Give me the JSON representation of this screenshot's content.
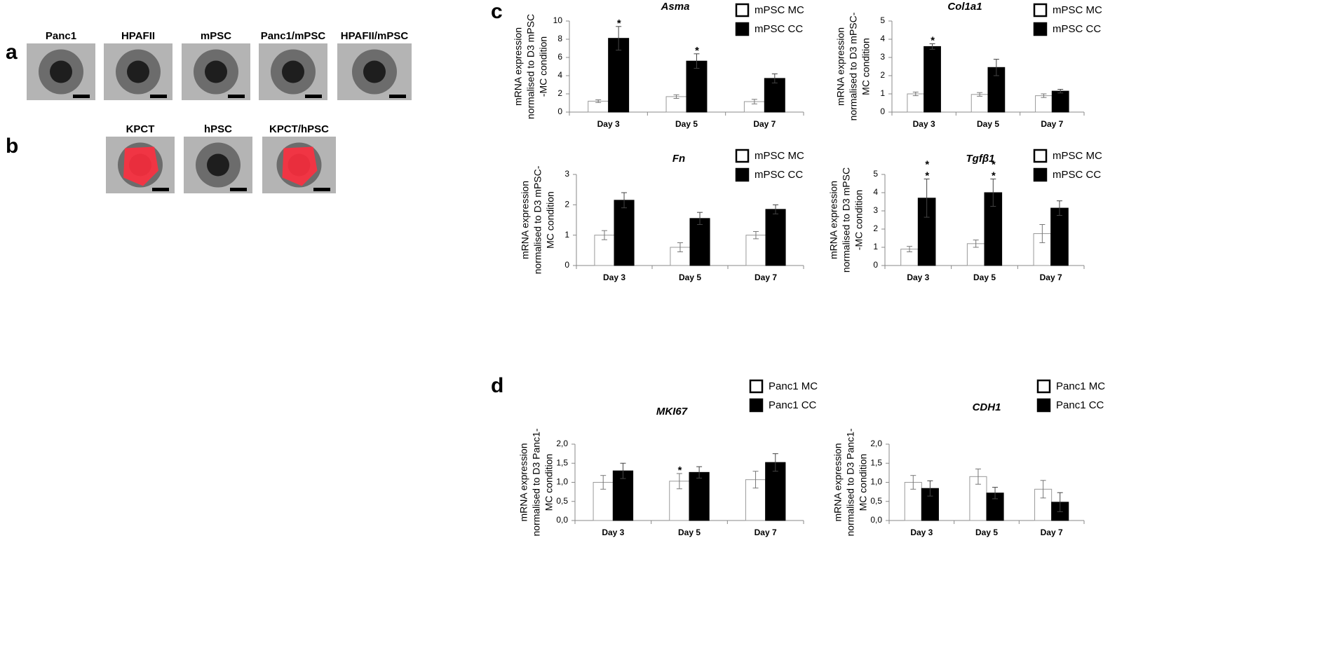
{
  "panels": [
    {
      "label": "a",
      "images": [
        "Panc1",
        "HPAFII",
        "mPSC",
        "Panc1/mPSC",
        "HPAFII/mPSC"
      ]
    },
    {
      "label": "b",
      "images": [
        "KPCT",
        "hPSC",
        "KPCT/hPSC"
      ]
    },
    {
      "label": "c"
    },
    {
      "label": "d"
    }
  ],
  "chart_data": [
    {
      "type": "bar",
      "title": "Asma",
      "ylabel": [
        "mRNA expression",
        "normalised to D3 mPSC",
        "-MC condition"
      ],
      "categories": [
        "Day 3",
        "Day 5",
        "Day 7"
      ],
      "series": [
        {
          "name": "mPSC MC",
          "color": "#ffffff",
          "values": [
            1.2,
            1.7,
            1.15
          ],
          "errors": [
            0.15,
            0.2,
            0.25
          ]
        },
        {
          "name": "mPSC CC",
          "color": "#000000",
          "values": [
            8.1,
            5.6,
            3.7
          ],
          "errors": [
            1.3,
            0.8,
            0.5
          ]
        }
      ],
      "ylim": [
        0,
        10
      ],
      "yticks": [
        0,
        2,
        4,
        6,
        8,
        10
      ],
      "annotations": [
        {
          "text": "*",
          "x": "Day 3",
          "series": "mPSC CC"
        },
        {
          "text": "*",
          "x": "Day 5",
          "series": "mPSC CC"
        }
      ]
    },
    {
      "type": "bar",
      "title": "Col1a1",
      "ylabel": [
        "mRNA expression",
        "normalised to D3 mPSC-",
        "MC condition"
      ],
      "categories": [
        "Day 3",
        "Day 5",
        "Day 7"
      ],
      "series": [
        {
          "name": "mPSC MC",
          "color": "#ffffff",
          "values": [
            1.0,
            0.97,
            0.9
          ],
          "errors": [
            0.1,
            0.1,
            0.1
          ]
        },
        {
          "name": "mPSC CC",
          "color": "#000000",
          "values": [
            3.6,
            2.45,
            1.15
          ],
          "errors": [
            0.15,
            0.45,
            0.1
          ]
        }
      ],
      "ylim": [
        0,
        5
      ],
      "yticks": [
        0,
        1,
        2,
        3,
        4,
        5
      ],
      "annotations": [
        {
          "text": "*",
          "x": "Day 3",
          "series": "mPSC CC"
        }
      ]
    },
    {
      "type": "bar",
      "title": "Fn",
      "ylabel": [
        "mRNA expression",
        "normalised to D3 mPSC-",
        "MC condition"
      ],
      "categories": [
        "Day 3",
        "Day 5",
        "Day 7"
      ],
      "series": [
        {
          "name": "mPSC MC",
          "color": "#ffffff",
          "values": [
            1.0,
            0.6,
            1.0
          ],
          "errors": [
            0.15,
            0.15,
            0.12
          ]
        },
        {
          "name": "mPSC CC",
          "color": "#000000",
          "values": [
            2.15,
            1.55,
            1.85
          ],
          "errors": [
            0.25,
            0.2,
            0.15
          ]
        }
      ],
      "ylim": [
        0,
        3
      ],
      "yticks": [
        0,
        1,
        2,
        3
      ]
    },
    {
      "type": "bar",
      "title": "Tgfβ1",
      "ylabel": [
        "mRNA expression",
        "normalised to D3 mPSC",
        "-MC condition"
      ],
      "categories": [
        "Day 3",
        "Day 5",
        "Day 7"
      ],
      "series": [
        {
          "name": "mPSC MC",
          "color": "#ffffff",
          "values": [
            0.9,
            1.2,
            1.75
          ],
          "errors": [
            0.15,
            0.2,
            0.5
          ]
        },
        {
          "name": "mPSC CC",
          "color": "#000000",
          "values": [
            3.7,
            4.0,
            3.15
          ],
          "errors": [
            1.05,
            0.75,
            0.4
          ]
        }
      ],
      "ylim": [
        0,
        5
      ],
      "yticks": [
        0,
        1,
        2,
        3,
        4,
        5
      ],
      "annotations": [
        {
          "text": "*",
          "x": "Day 3",
          "series": "mPSC CC"
        },
        {
          "text": "*",
          "x": "Day 3",
          "series": "mPSC CC"
        },
        {
          "text": "*",
          "x": "Day 5",
          "series": "mPSC CC"
        },
        {
          "text": "*",
          "x": "Day 5",
          "series": "mPSC CC"
        }
      ]
    },
    {
      "type": "bar",
      "title": "MKI67",
      "ylabel": [
        "mRNA expression",
        "normalised to D3 Panc1-",
        "MC condition"
      ],
      "categories": [
        "Day 3",
        "Day 5",
        "Day 7"
      ],
      "series": [
        {
          "name": "Panc1 MC",
          "color": "#ffffff",
          "values": [
            1.0,
            1.03,
            1.07
          ],
          "errors": [
            0.18,
            0.2,
            0.22
          ]
        },
        {
          "name": "Panc1 CC",
          "color": "#000000",
          "values": [
            1.3,
            1.26,
            1.52
          ],
          "errors": [
            0.2,
            0.15,
            0.23
          ]
        }
      ],
      "ylim": [
        0,
        2
      ],
      "yticks": [
        {
          "value": 0,
          "label": "0,0"
        },
        {
          "value": 0.5,
          "label": "0,5"
        },
        {
          "value": 1,
          "label": "1,0"
        },
        {
          "value": 1.5,
          "label": "1,5"
        },
        {
          "value": 2,
          "label": "2,0"
        }
      ],
      "annotations": [
        {
          "text": "*",
          "x": "Day 5",
          "series": "Panc1 MC"
        }
      ]
    },
    {
      "type": "bar",
      "title": "CDH1",
      "ylabel": [
        "mRNA expression",
        "normalised to D3 Panc1-",
        "MC condition"
      ],
      "categories": [
        "Day 3",
        "Day 5",
        "Day 7"
      ],
      "series": [
        {
          "name": "Panc1 MC",
          "color": "#ffffff",
          "values": [
            1.0,
            1.15,
            0.82
          ],
          "errors": [
            0.18,
            0.2,
            0.23
          ]
        },
        {
          "name": "Panc1 CC",
          "color": "#000000",
          "values": [
            0.84,
            0.72,
            0.48
          ],
          "errors": [
            0.2,
            0.15,
            0.25
          ]
        }
      ],
      "ylim": [
        0,
        2
      ],
      "yticks": [
        {
          "value": 0,
          "label": "0,0"
        },
        {
          "value": 0.5,
          "label": "0,5"
        },
        {
          "value": 1,
          "label": "1,0"
        },
        {
          "value": 1.5,
          "label": "1,5"
        },
        {
          "value": 2,
          "label": "2,0"
        }
      ]
    }
  ]
}
